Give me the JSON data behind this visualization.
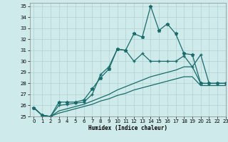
{
  "xlabel": "Humidex (Indice chaleur)",
  "xlim": [
    -0.5,
    23
  ],
  "ylim": [
    25,
    35.3
  ],
  "yticks": [
    25,
    26,
    27,
    28,
    29,
    30,
    31,
    32,
    33,
    34,
    35
  ],
  "xticks": [
    0,
    1,
    2,
    3,
    4,
    5,
    6,
    7,
    8,
    9,
    10,
    11,
    12,
    13,
    14,
    15,
    16,
    17,
    18,
    19,
    20,
    21,
    22,
    23
  ],
  "bg_color": "#ceeaea",
  "line_color": "#1a6b6b",
  "series": [
    {
      "x": [
        0,
        1,
        2,
        3,
        4,
        5,
        6,
        7,
        8,
        9,
        10,
        11,
        12,
        13,
        14,
        15,
        16,
        17,
        18,
        19,
        20,
        21,
        22,
        23
      ],
      "y": [
        25.8,
        25.1,
        25.0,
        26.3,
        26.3,
        26.3,
        26.5,
        27.5,
        28.5,
        29.3,
        31.1,
        31.0,
        32.5,
        32.2,
        35.0,
        32.8,
        33.4,
        32.5,
        30.7,
        30.6,
        28.0,
        28.0,
        28.0,
        28.0
      ],
      "marker": "*",
      "marker_size": 3.5,
      "linewidth": 0.9
    },
    {
      "x": [
        0,
        1,
        2,
        3,
        4,
        5,
        6,
        7,
        8,
        9,
        10,
        11,
        12,
        13,
        14,
        15,
        16,
        17,
        18,
        19,
        20,
        21,
        22,
        23
      ],
      "y": [
        25.8,
        25.1,
        25.0,
        26.0,
        26.1,
        26.2,
        26.3,
        27.0,
        28.8,
        29.5,
        31.1,
        31.0,
        30.0,
        30.7,
        30.0,
        30.0,
        30.0,
        30.0,
        30.5,
        29.5,
        30.6,
        28.0,
        28.0,
        28.0
      ],
      "marker": "+",
      "marker_size": 3.5,
      "linewidth": 0.9
    },
    {
      "x": [
        0,
        1,
        2,
        3,
        4,
        5,
        6,
        7,
        8,
        9,
        10,
        11,
        12,
        13,
        14,
        15,
        16,
        17,
        18,
        19,
        20,
        21,
        22,
        23
      ],
      "y": [
        25.8,
        25.1,
        25.0,
        25.5,
        25.7,
        25.9,
        26.1,
        26.4,
        26.7,
        27.0,
        27.4,
        27.7,
        28.0,
        28.3,
        28.6,
        28.8,
        29.0,
        29.2,
        29.5,
        29.5,
        28.0,
        28.0,
        28.0,
        28.0
      ],
      "marker": null,
      "marker_size": 0,
      "linewidth": 0.9
    },
    {
      "x": [
        0,
        1,
        2,
        3,
        4,
        5,
        6,
        7,
        8,
        9,
        10,
        11,
        12,
        13,
        14,
        15,
        16,
        17,
        18,
        19,
        20,
        21,
        22,
        23
      ],
      "y": [
        25.8,
        25.1,
        25.0,
        25.3,
        25.5,
        25.7,
        25.9,
        26.1,
        26.4,
        26.6,
        26.9,
        27.1,
        27.4,
        27.6,
        27.8,
        28.0,
        28.2,
        28.4,
        28.6,
        28.6,
        27.8,
        27.8,
        27.8,
        27.8
      ],
      "marker": null,
      "marker_size": 0,
      "linewidth": 0.9
    }
  ]
}
